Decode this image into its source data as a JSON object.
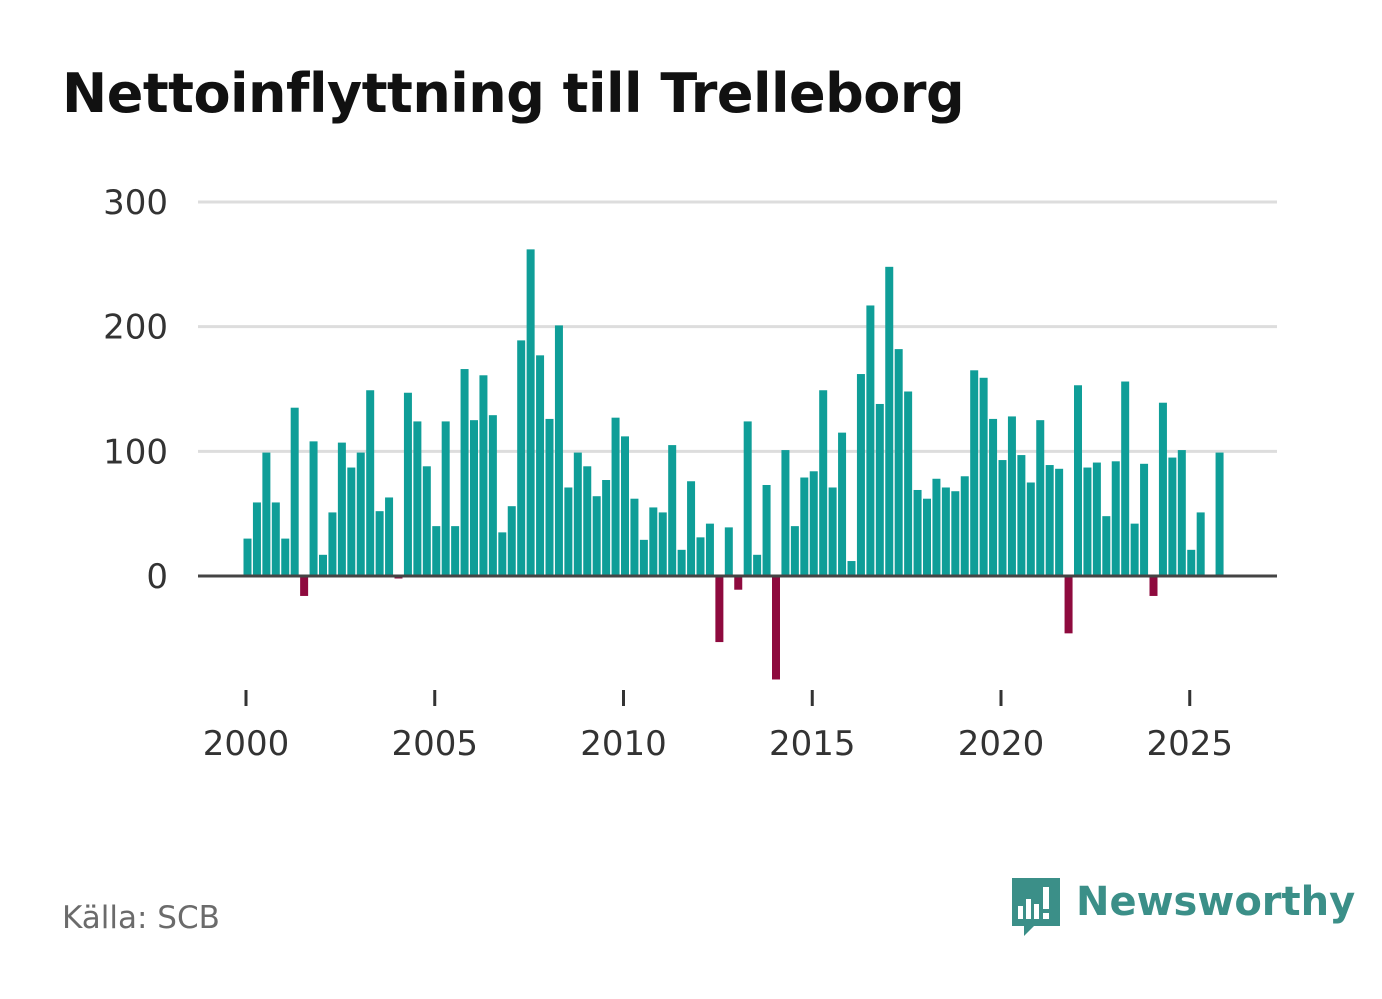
{
  "chart_data": {
    "type": "bar",
    "title": "Nettoinflyttning till Trelleborg",
    "xlabel": "",
    "ylabel": "",
    "ylim": [
      -100,
      300
    ],
    "yticks": [
      0,
      100,
      200,
      300
    ],
    "ytick_labels": [
      "0",
      "100",
      "200",
      "300"
    ],
    "xlim": [
      1999.5,
      2027.5
    ],
    "xticks": [
      2000,
      2005,
      2010,
      2015,
      2020,
      2025
    ],
    "xtick_labels": [
      "2000",
      "2005",
      "2010",
      "2015",
      "2020",
      "2025"
    ],
    "grid": true,
    "colors": {
      "positive": "#0f9e98",
      "negative": "#8e0a3e",
      "grid": "#dddddd",
      "axis": "#444444"
    },
    "x": [
      2000.0,
      2000.25,
      2000.5,
      2000.75,
      2001.0,
      2001.25,
      2001.5,
      2001.75,
      2002.0,
      2002.25,
      2002.5,
      2002.75,
      2003.0,
      2003.25,
      2003.5,
      2003.75,
      2004.0,
      2004.25,
      2004.5,
      2004.75,
      2005.0,
      2005.25,
      2005.5,
      2005.75,
      2006.0,
      2006.25,
      2006.5,
      2006.75,
      2007.0,
      2007.25,
      2007.5,
      2007.75,
      2008.0,
      2008.25,
      2008.5,
      2008.75,
      2009.0,
      2009.25,
      2009.5,
      2009.75,
      2010.0,
      2010.25,
      2010.5,
      2010.75,
      2011.0,
      2011.25,
      2011.5,
      2011.75,
      2012.0,
      2012.25,
      2012.5,
      2012.75,
      2013.0,
      2013.25,
      2013.5,
      2013.75,
      2014.0,
      2014.25,
      2014.5,
      2014.75,
      2015.0,
      2015.25,
      2015.5,
      2015.75,
      2016.0,
      2016.25,
      2016.5,
      2016.75,
      2017.0,
      2017.25,
      2017.5,
      2017.75,
      2018.0,
      2018.25,
      2018.5,
      2018.75,
      2019.0,
      2019.25,
      2019.5,
      2019.75,
      2020.0,
      2020.25,
      2020.5,
      2020.75,
      2021.0,
      2021.25,
      2021.5,
      2021.75,
      2022.0,
      2022.25,
      2022.5,
      2022.75,
      2023.0,
      2023.25,
      2023.5,
      2023.75,
      2024.0,
      2024.25,
      2024.5,
      2024.75,
      2025.0,
      2025.25,
      2025.5,
      2025.75
    ],
    "values": [
      30,
      59,
      99,
      59,
      30,
      135,
      -16,
      108,
      17,
      51,
      107,
      87,
      99,
      149,
      52,
      63,
      -2,
      147,
      124,
      88,
      40,
      124,
      40,
      166,
      125,
      161,
      129,
      35,
      56,
      189,
      262,
      177,
      126,
      201,
      71,
      99,
      88,
      64,
      77,
      127,
      112,
      62,
      29,
      55,
      51,
      105,
      21,
      76,
      31,
      42,
      -53,
      39,
      -11,
      124,
      17,
      73,
      -83,
      101,
      40,
      79,
      84,
      149,
      71,
      115,
      12,
      162,
      217,
      138,
      248,
      182,
      148,
      69,
      62,
      78,
      71,
      68,
      80,
      165,
      159,
      126,
      93,
      128,
      97,
      75,
      125,
      89,
      86,
      -46,
      153,
      87,
      91,
      48,
      92,
      156,
      42,
      90,
      -16,
      139,
      95,
      101,
      21,
      51,
      null,
      99
    ]
  },
  "footer": {
    "source": "Källa: SCB",
    "brand": "Newsworthy",
    "brand_color": "#3b8f88",
    "brand_icon": "newsworthy-logo-icon"
  }
}
